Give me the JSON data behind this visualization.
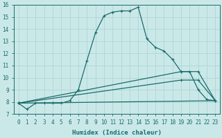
{
  "xlabel": "Humidex (Indice chaleur)",
  "xlim": [
    -0.5,
    23.5
  ],
  "ylim": [
    7,
    16
  ],
  "yticks": [
    7,
    8,
    9,
    10,
    11,
    12,
    13,
    14,
    15,
    16
  ],
  "xticks": [
    0,
    1,
    2,
    3,
    4,
    5,
    6,
    7,
    8,
    9,
    10,
    11,
    12,
    13,
    14,
    15,
    16,
    17,
    18,
    19,
    20,
    21,
    22,
    23
  ],
  "bg_color": "#cbe8e8",
  "line_color": "#1a6b6b",
  "grid_color": "#b0d8d8",
  "series": [
    {
      "x": [
        0,
        1,
        2,
        3,
        4,
        5,
        6,
        7,
        8,
        9,
        10,
        11,
        12,
        13,
        14,
        15,
        16,
        17,
        18,
        19,
        20,
        21,
        22,
        23
      ],
      "y": [
        7.9,
        7.4,
        7.9,
        7.9,
        7.9,
        7.9,
        8.1,
        9.0,
        11.4,
        13.7,
        15.1,
        15.4,
        15.5,
        15.5,
        15.8,
        13.2,
        12.5,
        12.2,
        11.5,
        10.5,
        10.5,
        9.0,
        8.2,
        8.1
      ]
    },
    {
      "x": [
        0,
        23
      ],
      "y": [
        7.9,
        8.1
      ]
    },
    {
      "x": [
        0,
        19,
        21,
        23
      ],
      "y": [
        7.9,
        9.8,
        9.8,
        8.1
      ]
    },
    {
      "x": [
        0,
        19,
        21,
        23
      ],
      "y": [
        7.9,
        10.5,
        10.5,
        8.1
      ]
    }
  ]
}
